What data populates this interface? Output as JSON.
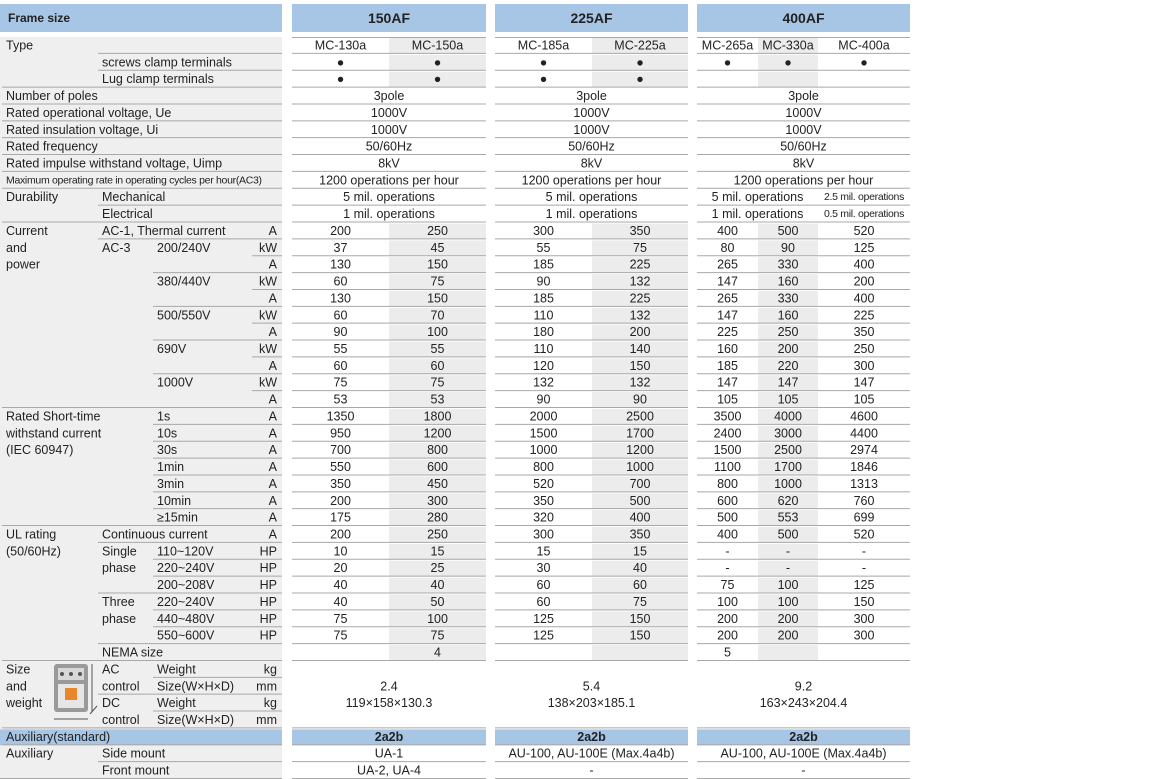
{
  "header": {
    "frame": "Frame size",
    "frames": [
      "150AF",
      "225AF",
      "400AF"
    ]
  },
  "rows": [
    {
      "g": "Type",
      "v": [
        [
          "MC-130a",
          "MC-150a"
        ],
        [
          "MC-185a",
          "MC-225a"
        ],
        [
          "MC-265a",
          "MC-330a",
          "MC-400a"
        ]
      ]
    },
    {
      "s": "screws clamp terminals",
      "v": [
        [
          "●",
          "●"
        ],
        [
          "●",
          "●"
        ],
        [
          "●",
          "●",
          "●"
        ]
      ]
    },
    {
      "s": "Lug clamp terminals",
      "v": [
        [
          "●",
          "●"
        ],
        [
          "●",
          "●"
        ],
        [
          null,
          null,
          null
        ]
      ]
    },
    {
      "g": "Number of poles",
      "v": [
        [
          "3pole"
        ],
        [
          "3pole"
        ],
        [
          "3pole"
        ]
      ]
    },
    {
      "g": "Rated operational voltage, Ue",
      "v": [
        [
          "1000V"
        ],
        [
          "1000V"
        ],
        [
          "1000V"
        ]
      ]
    },
    {
      "g": "Rated insulation voltage, Ui",
      "v": [
        [
          "1000V"
        ],
        [
          "1000V"
        ],
        [
          "1000V"
        ]
      ]
    },
    {
      "g": "Rated frequency",
      "v": [
        [
          "50/60Hz"
        ],
        [
          "50/60Hz"
        ],
        [
          "50/60Hz"
        ]
      ]
    },
    {
      "g": "Rated impulse withstand voltage, Uimp",
      "v": [
        [
          "8kV"
        ],
        [
          "8kV"
        ],
        [
          "8kV"
        ]
      ]
    },
    {
      "g": "Maximum operating rate in operating cycles per hour(AC3)",
      "v": [
        [
          "1200 operations per hour"
        ],
        [
          "1200 operations per hour"
        ],
        [
          "1200 operations per hour"
        ]
      ]
    },
    {
      "g": "Durability",
      "s": "Mechanical",
      "v": [
        [
          "5 mil. operations"
        ],
        [
          "5 mil. operations"
        ],
        [
          "5 mil. operations",
          "2.5 mil. operations"
        ]
      ]
    },
    {
      "s": "Electrical",
      "v": [
        [
          "1 mil. operations"
        ],
        [
          "1 mil. operations"
        ],
        [
          "1 mil. operations",
          "0.5 mil. operations"
        ]
      ]
    },
    {
      "g": "Current",
      "s": "AC-1, Thermal current",
      "u": "A",
      "v": [
        [
          200,
          250
        ],
        [
          300,
          350
        ],
        [
          400,
          500,
          520
        ]
      ]
    },
    {
      "g": "and",
      "s": "AC-3",
      "i": "200/240V",
      "u": "kW",
      "v": [
        [
          37,
          45
        ],
        [
          55,
          75
        ],
        [
          80,
          90,
          125
        ]
      ]
    },
    {
      "g": "power",
      "u": "A",
      "v": [
        [
          130,
          150
        ],
        [
          185,
          225
        ],
        [
          265,
          330,
          400
        ]
      ]
    },
    {
      "i": "380/440V",
      "u": "kW",
      "v": [
        [
          60,
          75
        ],
        [
          90,
          132
        ],
        [
          147,
          160,
          200
        ]
      ]
    },
    {
      "u": "A",
      "v": [
        [
          130,
          150
        ],
        [
          185,
          225
        ],
        [
          265,
          330,
          400
        ]
      ]
    },
    {
      "i": "500/550V",
      "u": "kW",
      "v": [
        [
          60,
          70
        ],
        [
          110,
          132
        ],
        [
          147,
          160,
          225
        ]
      ]
    },
    {
      "u": "A",
      "v": [
        [
          90,
          100
        ],
        [
          180,
          200
        ],
        [
          225,
          250,
          350
        ]
      ]
    },
    {
      "i": "690V",
      "u": "kW",
      "v": [
        [
          55,
          55
        ],
        [
          110,
          140
        ],
        [
          160,
          200,
          250
        ]
      ]
    },
    {
      "u": "A",
      "v": [
        [
          60,
          60
        ],
        [
          120,
          150
        ],
        [
          185,
          220,
          300
        ]
      ]
    },
    {
      "i": "1000V",
      "u": "kW",
      "v": [
        [
          75,
          75
        ],
        [
          132,
          132
        ],
        [
          147,
          147,
          147
        ]
      ]
    },
    {
      "u": "A",
      "v": [
        [
          53,
          53
        ],
        [
          90,
          90
        ],
        [
          105,
          105,
          105
        ]
      ]
    },
    {
      "g": "Rated Short-time",
      "i": "1s",
      "u": "A",
      "v": [
        [
          1350,
          1800
        ],
        [
          2000,
          2500
        ],
        [
          3500,
          4000,
          4600
        ]
      ]
    },
    {
      "g": "withstand current",
      "i": "10s",
      "u": "A",
      "v": [
        [
          950,
          1200
        ],
        [
          1500,
          1700
        ],
        [
          2400,
          3000,
          4400
        ]
      ]
    },
    {
      "g": "(IEC 60947)",
      "i": "30s",
      "u": "A",
      "v": [
        [
          700,
          800
        ],
        [
          1000,
          1200
        ],
        [
          1500,
          2500,
          2974
        ]
      ]
    },
    {
      "i": "1min",
      "u": "A",
      "v": [
        [
          550,
          600
        ],
        [
          800,
          1000
        ],
        [
          1100,
          1700,
          1846
        ]
      ]
    },
    {
      "i": "3min",
      "u": "A",
      "v": [
        [
          350,
          450
        ],
        [
          520,
          700
        ],
        [
          800,
          1000,
          1313
        ]
      ]
    },
    {
      "i": "10min",
      "u": "A",
      "v": [
        [
          200,
          300
        ],
        [
          350,
          500
        ],
        [
          600,
          620,
          760
        ]
      ]
    },
    {
      "i": "≥15min",
      "u": "A",
      "v": [
        [
          175,
          280
        ],
        [
          320,
          400
        ],
        [
          500,
          553,
          699
        ]
      ]
    },
    {
      "g": "UL rating",
      "s": "Continuous current",
      "u": "A",
      "v": [
        [
          200,
          250
        ],
        [
          300,
          350
        ],
        [
          400,
          500,
          520
        ]
      ]
    },
    {
      "g": "(50/60Hz)",
      "s": "Single",
      "i": "110~120V",
      "u": "HP",
      "v": [
        [
          10,
          15
        ],
        [
          15,
          15
        ],
        [
          "-",
          "-",
          "-"
        ]
      ]
    },
    {
      "s": "phase",
      "i": "220~240V",
      "u": "HP",
      "v": [
        [
          20,
          25
        ],
        [
          30,
          40
        ],
        [
          "-",
          "-",
          "-"
        ]
      ]
    },
    {
      "i": "200~208V",
      "u": "HP",
      "v": [
        [
          40,
          40
        ],
        [
          60,
          60
        ],
        [
          75,
          100,
          125
        ]
      ]
    },
    {
      "s": "Three",
      "i": "220~240V",
      "u": "HP",
      "v": [
        [
          40,
          50
        ],
        [
          60,
          75
        ],
        [
          100,
          100,
          150
        ]
      ]
    },
    {
      "s": "phase",
      "i": "440~480V",
      "u": "HP",
      "v": [
        [
          75,
          100
        ],
        [
          125,
          150
        ],
        [
          200,
          200,
          300
        ]
      ]
    },
    {
      "i": "550~600V",
      "u": "HP",
      "v": [
        [
          75,
          75
        ],
        [
          125,
          150
        ],
        [
          200,
          200,
          300
        ]
      ]
    },
    {
      "s": "NEMA size",
      "v": [
        [
          null,
          4
        ],
        [
          null,
          null
        ],
        [
          5,
          null,
          null
        ]
      ]
    },
    {
      "g": "Size",
      "s": "AC",
      "i": "Weight",
      "u": "kg"
    },
    {
      "g": "and",
      "s": "control",
      "i": "Size(W×H×D)",
      "u": "mm",
      "v": [
        [
          2.4
        ],
        [
          5.4
        ],
        [
          9.2
        ]
      ]
    },
    {
      "g": "weight",
      "s": "DC",
      "i": "Weight",
      "u": "kg",
      "v": [
        [
          "119×158×130.3"
        ],
        [
          "138×203×185.1"
        ],
        [
          "163×243×204.4"
        ]
      ]
    },
    {
      "s": "control",
      "i": "Size(W×H×D)",
      "u": "mm"
    },
    {
      "g": "Auxiliary(standard)",
      "v": [
        [
          "2a2b"
        ],
        [
          "2a2b"
        ],
        [
          "2a2b"
        ]
      ]
    },
    {
      "g": "Auxiliary",
      "s": "Side mount",
      "v": [
        [
          "UA-1"
        ],
        [
          "AU-100, AU-100E (Max.4a4b)"
        ],
        [
          "AU-100, AU-100E (Max.4a4b)"
        ]
      ]
    },
    {
      "s": "Front mount",
      "v": [
        [
          "UA-2, UA-4"
        ],
        [
          "-"
        ],
        [
          "-"
        ]
      ]
    }
  ]
}
